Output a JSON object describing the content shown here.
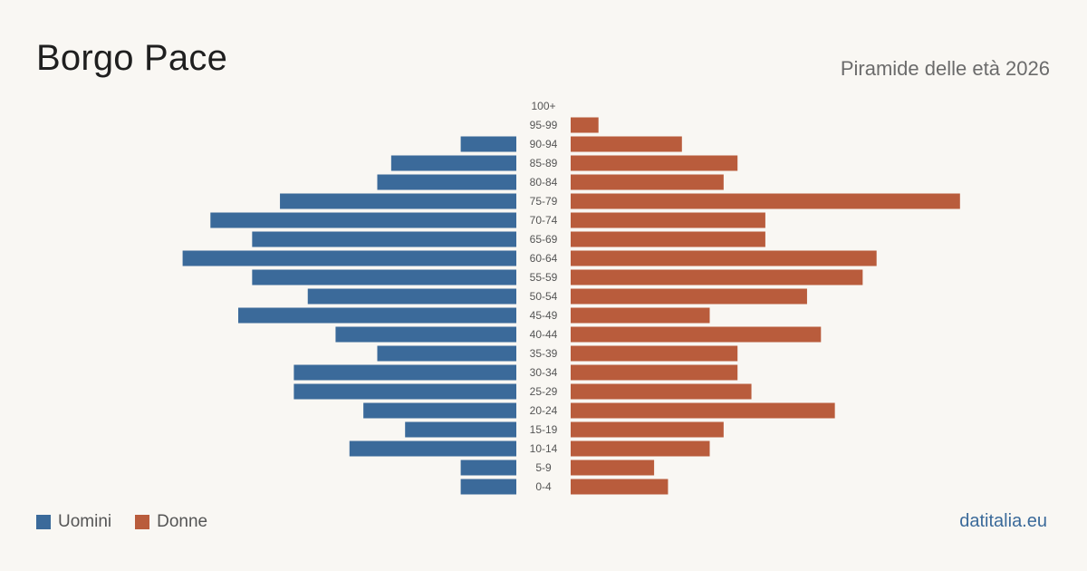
{
  "header": {
    "title": "Borgo Pace",
    "subtitle": "Piramide delle età 2026"
  },
  "legend": {
    "men_label": "Uomini",
    "women_label": "Donne"
  },
  "footer": {
    "source": "datitalia.eu"
  },
  "colors": {
    "men": "#3b6a9a",
    "women": "#b95c3c",
    "background": "#f9f7f3",
    "tick_text": "#555555"
  },
  "chart_data": {
    "type": "bar",
    "orientation": "horizontal-pyramid",
    "categories": [
      "100+",
      "95-99",
      "90-94",
      "85-89",
      "80-84",
      "75-79",
      "70-74",
      "65-69",
      "60-64",
      "55-59",
      "50-54",
      "45-49",
      "40-44",
      "35-39",
      "30-34",
      "25-29",
      "20-24",
      "15-19",
      "10-14",
      "5-9",
      "0-4"
    ],
    "series": [
      {
        "name": "Uomini",
        "values": [
          0,
          0,
          4,
          9,
          10,
          17,
          22,
          19,
          24,
          19,
          15,
          20,
          13,
          10,
          16,
          16,
          11,
          8,
          12,
          4,
          4
        ]
      },
      {
        "name": "Donne",
        "values": [
          0,
          2,
          8,
          12,
          11,
          28,
          14,
          14,
          22,
          21,
          17,
          10,
          18,
          12,
          12,
          13,
          19,
          11,
          10,
          6,
          7
        ]
      }
    ],
    "legend_position": "bottom-left",
    "grid": false
  }
}
